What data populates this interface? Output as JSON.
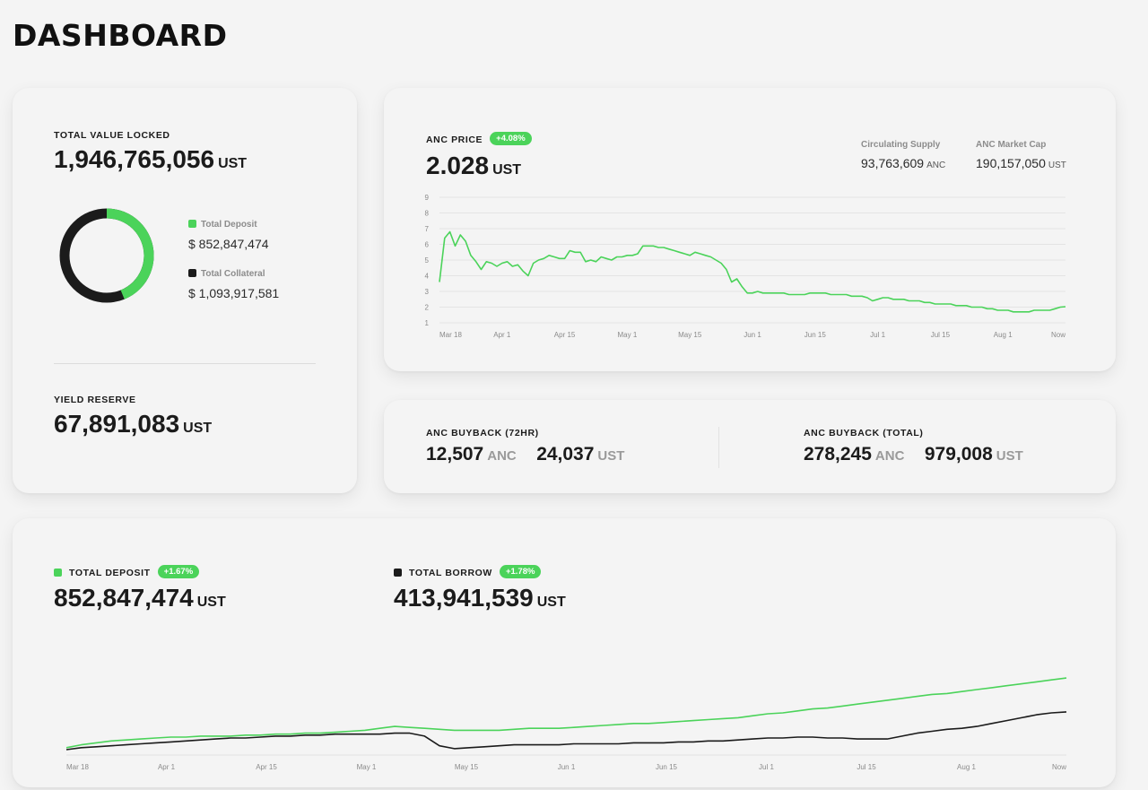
{
  "page": {
    "title": "DASHBOARD"
  },
  "tvl": {
    "label": "TOTAL VALUE LOCKED",
    "value": "1,946,765,056",
    "unit": "UST",
    "deposit_label": "Total Deposit",
    "deposit_value": "$ 852,847,474",
    "collateral_label": "Total Collateral",
    "collateral_value": "$ 1,093,917,581",
    "deposit_share": 0.438
  },
  "yield_reserve": {
    "label": "YIELD RESERVE",
    "value": "67,891,083",
    "unit": "UST"
  },
  "anc_price": {
    "label": "ANC PRICE",
    "change": "+4.08%",
    "value": "2.028",
    "unit": "UST",
    "circ_label": "Circulating Supply",
    "circ_value": "93,763,609",
    "circ_unit": "ANC",
    "mcap_label": "ANC Market Cap",
    "mcap_value": "190,157,050",
    "mcap_unit": "UST"
  },
  "buyback_72": {
    "label": "ANC BUYBACK (72HR)",
    "anc": "12,507",
    "anc_unit": "ANC",
    "ust": "24,037",
    "ust_unit": "UST"
  },
  "buyback_total": {
    "label": "ANC BUYBACK (TOTAL)",
    "anc": "278,245",
    "anc_unit": "ANC",
    "ust": "979,008",
    "ust_unit": "UST"
  },
  "deposit": {
    "label": "TOTAL DEPOSIT",
    "change": "+1.67%",
    "value": "852,847,474",
    "unit": "UST"
  },
  "borrow": {
    "label": "TOTAL BORROW",
    "change": "+1.78%",
    "value": "413,941,539",
    "unit": "UST"
  },
  "colors": {
    "green": "#4bd35a",
    "black": "#1b1b1b",
    "grid": "#e4e4e4"
  },
  "chart_data": [
    {
      "type": "line",
      "title": "",
      "xlabel": "",
      "ylabel": "",
      "ylim": [
        1,
        9
      ],
      "yticks": [
        "9",
        "8",
        "7",
        "6",
        "5",
        "4",
        "3",
        "2",
        "1"
      ],
      "xticks": [
        "Mar 18",
        "Apr 1",
        "Apr 15",
        "May 1",
        "May 15",
        "Jun 1",
        "Jun 15",
        "Jul 1",
        "Jul 15",
        "Aug 1",
        "Now"
      ],
      "series": [
        {
          "values": [
            3.6,
            6.4,
            6.8,
            5.9,
            6.6,
            6.2,
            5.3,
            4.9,
            4.4,
            4.9,
            4.8,
            4.6,
            4.8,
            4.9,
            4.6,
            4.7,
            4.3,
            4.0,
            4.8,
            5.0,
            5.1,
            5.3,
            5.2,
            5.1,
            5.1,
            5.6,
            5.5,
            5.5,
            4.9,
            5.0,
            4.9,
            5.2,
            5.1,
            5.0,
            5.2,
            5.2,
            5.3,
            5.3,
            5.4,
            5.9,
            5.9,
            5.9,
            5.8,
            5.8,
            5.7,
            5.6,
            5.5,
            5.4,
            5.3,
            5.5,
            5.4,
            5.3,
            5.2,
            5.0,
            4.8,
            4.4,
            3.6,
            3.8,
            3.3,
            2.9,
            2.9,
            3.0,
            2.9,
            2.9,
            2.9,
            2.9,
            2.9,
            2.8,
            2.8,
            2.8,
            2.8,
            2.9,
            2.9,
            2.9,
            2.9,
            2.8,
            2.8,
            2.8,
            2.8,
            2.7,
            2.7,
            2.7,
            2.6,
            2.4,
            2.5,
            2.6,
            2.6,
            2.5,
            2.5,
            2.5,
            2.4,
            2.4,
            2.4,
            2.3,
            2.3,
            2.2,
            2.2,
            2.2,
            2.2,
            2.1,
            2.1,
            2.1,
            2.0,
            2.0,
            2.0,
            1.9,
            1.9,
            1.8,
            1.8,
            1.8,
            1.7,
            1.7,
            1.7,
            1.7,
            1.8,
            1.8,
            1.8,
            1.8,
            1.9,
            2.0,
            2.03
          ]
        }
      ]
    },
    {
      "type": "line",
      "title": "",
      "xlabel": "",
      "ylabel": "",
      "xticks": [
        "Mar 18",
        "Apr 1",
        "Apr 15",
        "May 1",
        "May 15",
        "Jun 1",
        "Jun 15",
        "Jul 1",
        "Jul 15",
        "Aug 1",
        "Now"
      ],
      "ylim": [
        0,
        100
      ],
      "series": [
        {
          "name": "TOTAL DEPOSIT",
          "values": [
            2,
            5,
            7,
            9,
            10,
            11,
            12,
            13,
            13,
            14,
            14,
            14,
            15,
            15,
            16,
            16,
            17,
            17,
            18,
            19,
            20,
            22,
            24,
            23,
            22,
            21,
            20,
            20,
            20,
            20,
            21,
            22,
            22,
            22,
            23,
            24,
            25,
            26,
            27,
            27,
            28,
            29,
            30,
            31,
            32,
            33,
            35,
            37,
            38,
            40,
            42,
            43,
            45,
            47,
            49,
            51,
            53,
            55,
            57,
            58,
            60,
            62,
            64,
            66,
            68,
            70,
            72,
            74
          ]
        },
        {
          "name": "TOTAL BORROW",
          "values": [
            0,
            2,
            3,
            4,
            5,
            6,
            7,
            8,
            9,
            10,
            11,
            12,
            12,
            13,
            14,
            14,
            15,
            15,
            16,
            16,
            16,
            16,
            17,
            17,
            14,
            4,
            1,
            2,
            3,
            4,
            5,
            5,
            5,
            5,
            6,
            6,
            6,
            6,
            7,
            7,
            7,
            8,
            8,
            9,
            9,
            10,
            11,
            12,
            12,
            13,
            13,
            12,
            12,
            11,
            11,
            11,
            14,
            17,
            19,
            21,
            22,
            24,
            27,
            30,
            33,
            36,
            38,
            39
          ]
        }
      ]
    }
  ]
}
